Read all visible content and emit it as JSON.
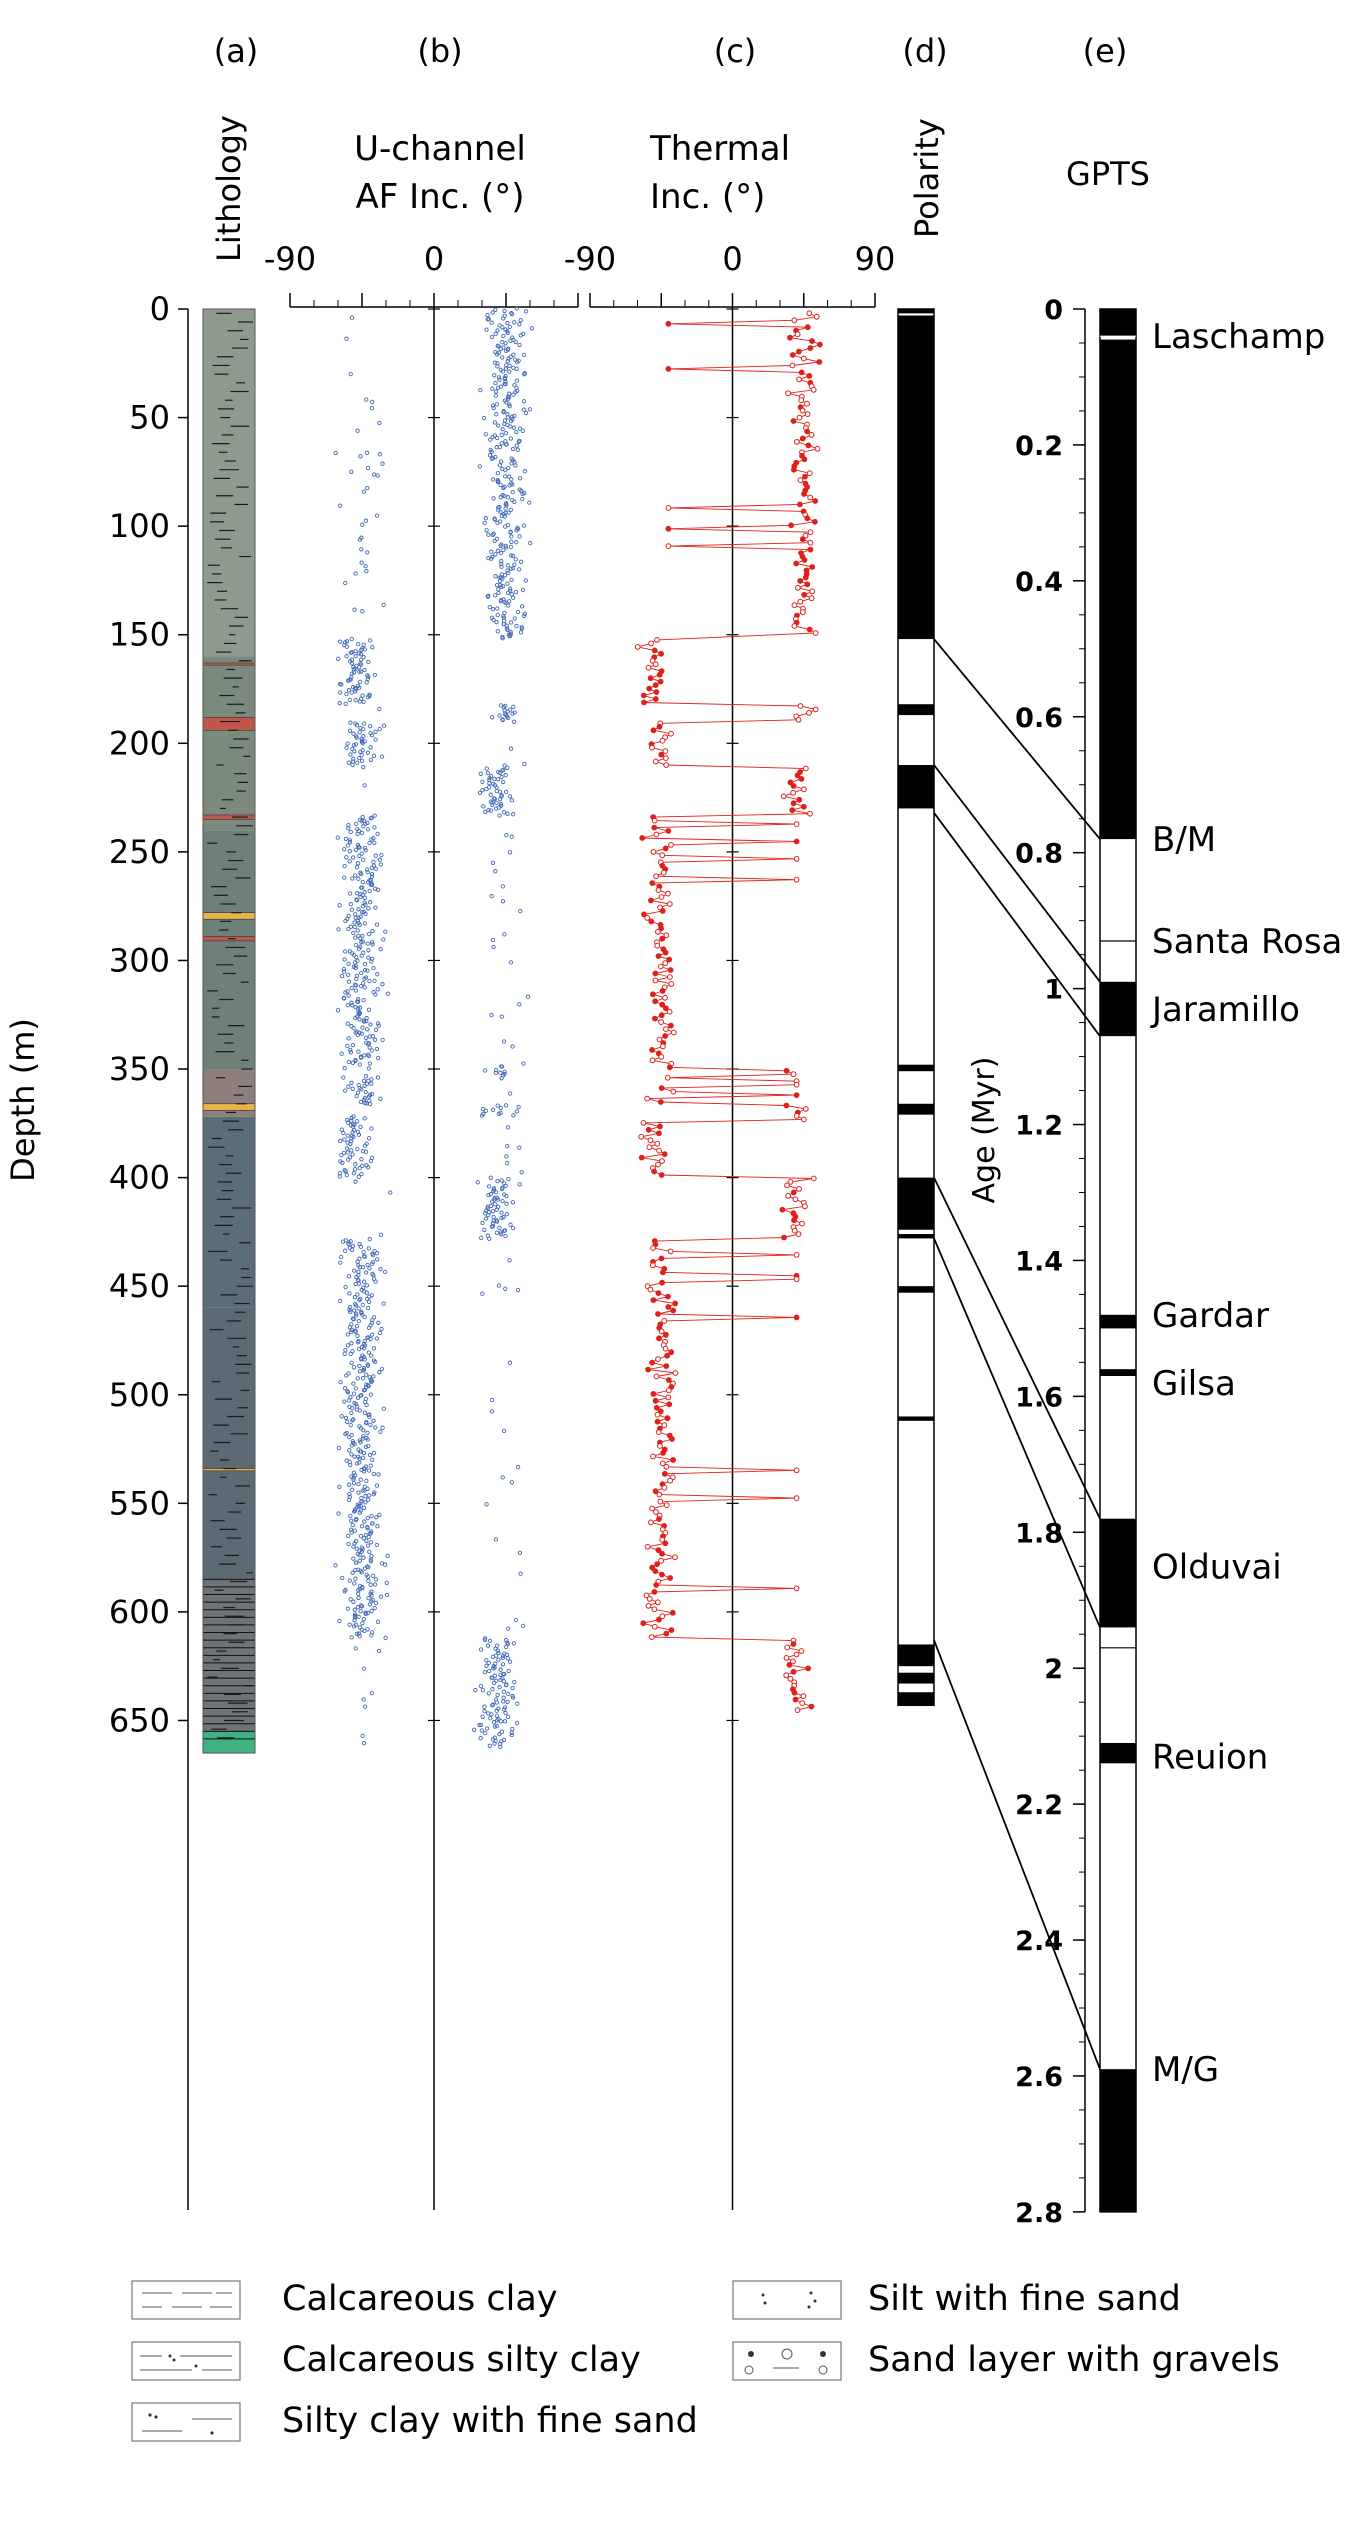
{
  "panel_labels": [
    "(a)",
    "(b)",
    "(c)",
    "(d)",
    "(e)"
  ],
  "headers": {
    "lithology": "Lithology",
    "uchannel_line1": "U-channel",
    "uchannel_line2": "AF Inc. (°)",
    "thermal_line1": "Thermal",
    "thermal_line2": "Inc. (°)",
    "polarity": "Polarity",
    "gpts": "GPTS"
  },
  "chart_data": {
    "type": "scatter",
    "depth_axis": {
      "label": "Depth (m)",
      "range": [
        0,
        665
      ],
      "ticks": [
        0,
        50,
        100,
        150,
        200,
        250,
        300,
        350,
        400,
        450,
        500,
        550,
        600,
        650
      ]
    },
    "inclination_axis": {
      "range": [
        -90,
        90
      ],
      "tick_labels": [
        "-90",
        "0",
        "90"
      ]
    },
    "age_axis": {
      "label": "Age (Myr)",
      "range": [
        0,
        2.8
      ],
      "ticks": [
        0,
        0.2,
        0.4,
        0.6,
        0.8,
        1,
        1.2,
        1.4,
        1.6,
        1.8,
        2,
        2.2,
        2.4,
        2.6,
        2.8
      ],
      "tick_labels": [
        "0",
        "0.2",
        "0.4",
        "0.6",
        "0.8",
        "1",
        "1.2",
        "1.4",
        "1.6",
        "1.8",
        "2",
        "2.2",
        "2.4",
        "2.6",
        "2.8"
      ]
    },
    "inclination_segments": [
      {
        "from": 0,
        "to": 152,
        "mean": 45
      },
      {
        "from": 152,
        "to": 182,
        "mean": -50
      },
      {
        "from": 182,
        "to": 190,
        "mean": 45
      },
      {
        "from": 190,
        "to": 210,
        "mean": -45
      },
      {
        "from": 210,
        "to": 233,
        "mean": 40
      },
      {
        "from": 233,
        "to": 350,
        "mean": -45
      },
      {
        "from": 350,
        "to": 353,
        "mean": 40
      },
      {
        "from": 353,
        "to": 366,
        "mean": -45
      },
      {
        "from": 366,
        "to": 372,
        "mean": 40
      },
      {
        "from": 372,
        "to": 400,
        "mean": -50
      },
      {
        "from": 400,
        "to": 428,
        "mean": 40
      },
      {
        "from": 428,
        "to": 460,
        "mean": -45
      },
      {
        "from": 460,
        "to": 612,
        "mean": -45
      },
      {
        "from": 612,
        "to": 660,
        "mean": 40
      }
    ],
    "polarity_normal_intervals": [
      [
        0,
        2
      ],
      [
        3,
        152
      ],
      [
        182,
        187
      ],
      [
        210,
        230
      ],
      [
        348,
        351
      ],
      [
        366,
        371
      ],
      [
        400,
        424
      ],
      [
        426,
        428
      ],
      [
        450,
        453
      ],
      [
        510,
        512
      ],
      [
        615,
        625
      ],
      [
        628,
        633
      ],
      [
        637,
        643
      ]
    ],
    "gpts_normal_intervals": [
      [
        0,
        0.04
      ],
      [
        0.045,
        0.78
      ],
      [
        0.99,
        1.07
      ],
      [
        1.48,
        1.5
      ],
      [
        1.56,
        1.57
      ],
      [
        1.78,
        1.94
      ],
      [
        2.11,
        2.14
      ],
      [
        2.59,
        2.8
      ]
    ],
    "gpts_lines": [
      0.04,
      0.93,
      1.97
    ],
    "gpts_labels": [
      {
        "text": "Laschamp",
        "age": 0.04
      },
      {
        "text": "B/M",
        "age": 0.78
      },
      {
        "text": "Santa Rosa",
        "age": 0.93
      },
      {
        "text": "Jaramillo",
        "age": 1.03
      },
      {
        "text": "Gardar",
        "age": 1.48
      },
      {
        "text": "Gilsa",
        "age": 1.58
      },
      {
        "text": "Olduvai",
        "age": 1.85
      },
      {
        "text": "Reuion",
        "age": 2.13
      },
      {
        "text": "M/G",
        "age": 2.59
      }
    ],
    "correlations": [
      {
        "depth": 152,
        "age": 0.78
      },
      {
        "depth": 210,
        "age": 0.99
      },
      {
        "depth": 232,
        "age": 1.07
      },
      {
        "depth": 400,
        "age": 1.78
      },
      {
        "depth": 428,
        "age": 1.94
      },
      {
        "depth": 613,
        "age": 2.59
      }
    ],
    "lithology_layers": [
      {
        "from": 0,
        "to": 160,
        "color": "#8f9a8e"
      },
      {
        "from": 160,
        "to": 240,
        "color": "#7a8a7c"
      },
      {
        "from": 240,
        "to": 350,
        "color": "#6f8079"
      },
      {
        "from": 350,
        "to": 372,
        "color": "#8d7f7b"
      },
      {
        "from": 372,
        "to": 460,
        "color": "#5b6e78"
      },
      {
        "from": 460,
        "to": 585,
        "color": "#5c6a74"
      },
      {
        "from": 585,
        "to": 655,
        "color": "#6d7378"
      },
      {
        "from": 655,
        "to": 665,
        "color": "#3fb27f"
      }
    ],
    "lithology_beds": [
      {
        "from": 188,
        "to": 194,
        "color": "#c0574b"
      },
      {
        "from": 163,
        "to": 164,
        "color": "#c0574b"
      },
      {
        "from": 233,
        "to": 235,
        "color": "#c0574b"
      },
      {
        "from": 278,
        "to": 281,
        "color": "#e8b34a"
      },
      {
        "from": 289,
        "to": 291,
        "color": "#c0574b"
      },
      {
        "from": 366,
        "to": 369,
        "color": "#e8b34a"
      },
      {
        "from": 534,
        "to": 535,
        "color": "#e8b34a"
      }
    ]
  },
  "colors": {
    "af": "#4169b8",
    "thermal": "#e0201a",
    "axis": "#000000"
  },
  "legend": [
    {
      "label": "Calcareous clay",
      "pattern": "dashes"
    },
    {
      "label": "Calcareous silty clay",
      "pattern": "dash-dots"
    },
    {
      "label": "Silty clay with fine sand",
      "pattern": "dots-line"
    },
    {
      "label": "Silt with fine sand",
      "pattern": "dots"
    },
    {
      "label": "Sand layer with gravels",
      "pattern": "gravels"
    }
  ]
}
